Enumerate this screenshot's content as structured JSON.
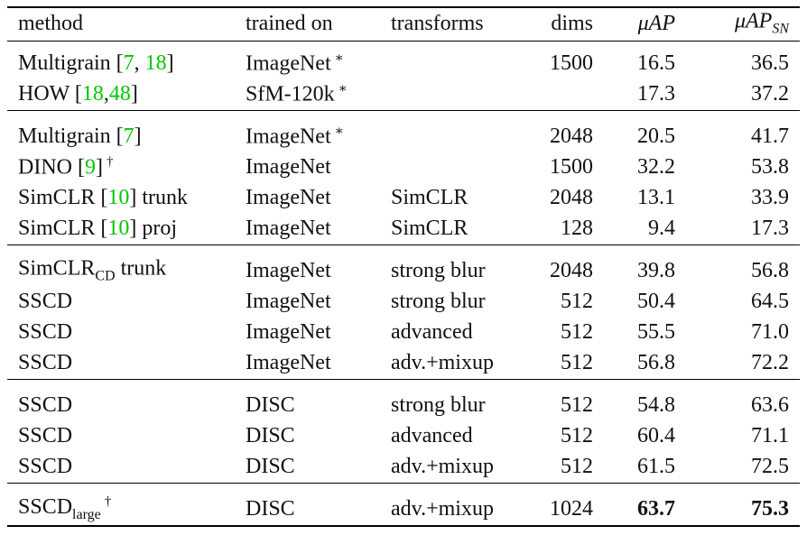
{
  "table": {
    "header": [
      [
        {
          "text": "method"
        }
      ],
      [
        {
          "text": "trained on"
        }
      ],
      [
        {
          "text": "transforms"
        }
      ],
      [
        {
          "text": "dims"
        }
      ],
      [
        {
          "text": "μAP",
          "style": "italic"
        }
      ],
      [
        {
          "text": "μAP",
          "style": "italic"
        },
        {
          "text": "SN",
          "style": "sub italic"
        }
      ]
    ],
    "groups": [
      [
        {
          "method": [
            {
              "text": "Multigrain ["
            },
            {
              "text": "7",
              "style": "cite"
            },
            {
              "text": ", "
            },
            {
              "text": "18",
              "style": "cite"
            },
            {
              "text": "]"
            }
          ],
          "trained_on": [
            {
              "text": "ImageNet"
            },
            {
              "text": "∗",
              "style": "sup"
            }
          ],
          "transforms": null,
          "dims": "1500",
          "uap": "16.5",
          "uap_sn": "36.5"
        },
        {
          "method": [
            {
              "text": "HOW ["
            },
            {
              "text": "18",
              "style": "cite"
            },
            {
              "text": ","
            },
            {
              "text": "48",
              "style": "cite"
            },
            {
              "text": "]"
            }
          ],
          "trained_on": [
            {
              "text": "SfM-120k"
            },
            {
              "text": "∗",
              "style": "sup"
            }
          ],
          "transforms": null,
          "dims": null,
          "uap": "17.3",
          "uap_sn": "37.2"
        }
      ],
      [
        {
          "method": [
            {
              "text": "Multigrain ["
            },
            {
              "text": "7",
              "style": "cite"
            },
            {
              "text": "]"
            }
          ],
          "trained_on": [
            {
              "text": "ImageNet"
            },
            {
              "text": "∗",
              "style": "sup"
            }
          ],
          "transforms": null,
          "dims": "2048",
          "uap": "20.5",
          "uap_sn": "41.7"
        },
        {
          "method": [
            {
              "text": "DINO ["
            },
            {
              "text": "9",
              "style": "cite"
            },
            {
              "text": "]"
            },
            {
              "text": "†",
              "style": "sup"
            }
          ],
          "trained_on": [
            {
              "text": "ImageNet"
            }
          ],
          "transforms": null,
          "dims": "1500",
          "uap": "32.2",
          "uap_sn": "53.8"
        },
        {
          "method": [
            {
              "text": "SimCLR ["
            },
            {
              "text": "10",
              "style": "cite"
            },
            {
              "text": "] trunk"
            }
          ],
          "trained_on": [
            {
              "text": "ImageNet"
            }
          ],
          "transforms": "SimCLR",
          "dims": "2048",
          "uap": "13.1",
          "uap_sn": "33.9"
        },
        {
          "method": [
            {
              "text": "SimCLR ["
            },
            {
              "text": "10",
              "style": "cite"
            },
            {
              "text": "] proj"
            }
          ],
          "trained_on": [
            {
              "text": "ImageNet"
            }
          ],
          "transforms": "SimCLR",
          "dims": "128",
          "uap": "9.4",
          "uap_sn": "17.3"
        }
      ],
      [
        {
          "method": [
            {
              "text": "SimCLR"
            },
            {
              "text": "CD",
              "style": "sub"
            },
            {
              "text": " trunk"
            }
          ],
          "trained_on": [
            {
              "text": "ImageNet"
            }
          ],
          "transforms": "strong blur",
          "dims": "2048",
          "uap": "39.8",
          "uap_sn": "56.8"
        },
        {
          "method": [
            {
              "text": "SSCD"
            }
          ],
          "trained_on": [
            {
              "text": "ImageNet"
            }
          ],
          "transforms": "strong blur",
          "dims": "512",
          "uap": "50.4",
          "uap_sn": "64.5"
        },
        {
          "method": [
            {
              "text": "SSCD"
            }
          ],
          "trained_on": [
            {
              "text": "ImageNet"
            }
          ],
          "transforms": "advanced",
          "dims": "512",
          "uap": "55.5",
          "uap_sn": "71.0"
        },
        {
          "method": [
            {
              "text": "SSCD"
            }
          ],
          "trained_on": [
            {
              "text": "ImageNet"
            }
          ],
          "transforms": "adv.+mixup",
          "dims": "512",
          "uap": "56.8",
          "uap_sn": "72.2"
        }
      ],
      [
        {
          "method": [
            {
              "text": "SSCD"
            }
          ],
          "trained_on": [
            {
              "text": "DISC"
            }
          ],
          "transforms": "strong blur",
          "dims": "512",
          "uap": "54.8",
          "uap_sn": "63.6"
        },
        {
          "method": [
            {
              "text": "SSCD"
            }
          ],
          "trained_on": [
            {
              "text": "DISC"
            }
          ],
          "transforms": "advanced",
          "dims": "512",
          "uap": "60.4",
          "uap_sn": "71.1"
        },
        {
          "method": [
            {
              "text": "SSCD"
            }
          ],
          "trained_on": [
            {
              "text": "DISC"
            }
          ],
          "transforms": "adv.+mixup",
          "dims": "512",
          "uap": "61.5",
          "uap_sn": "72.5"
        }
      ],
      [
        {
          "method": [
            {
              "text": "SSCD"
            },
            {
              "text": "large",
              "style": "sub"
            },
            {
              "text": "†",
              "style": "sup"
            }
          ],
          "trained_on": [
            {
              "text": "DISC"
            }
          ],
          "transforms": "adv.+mixup",
          "dims": "1024",
          "uap": "63.7",
          "uap_sn": "75.3",
          "bold": [
            "uap",
            "uap_sn"
          ]
        }
      ]
    ]
  }
}
